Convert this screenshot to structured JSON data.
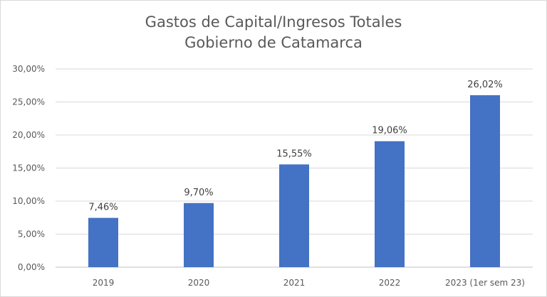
{
  "chart_data": {
    "type": "bar",
    "title": "Gastos de Capital/Ingresos Totales",
    "subtitle": "Gobierno de Catamarca",
    "categories": [
      "2019",
      "2020",
      "2021",
      "2022",
      "2023 (1er sem 23)"
    ],
    "values": [
      7.46,
      9.7,
      15.55,
      19.06,
      26.02
    ],
    "value_labels": [
      "7,46%",
      "9,70%",
      "15,55%",
      "19,06%",
      "26,02%"
    ],
    "yticks": [
      "0,00%",
      "5,00%",
      "10,00%",
      "15,00%",
      "20,00%",
      "25,00%",
      "30,00%"
    ],
    "ylim": [
      0,
      30
    ],
    "grid": true,
    "legend": "none",
    "bar_color": "#4472c4"
  }
}
